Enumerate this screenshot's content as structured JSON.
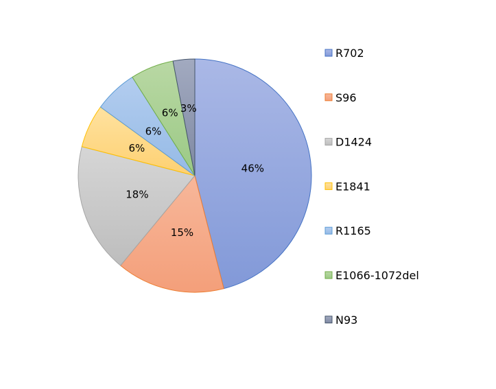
{
  "chart_data": {
    "type": "pie",
    "categories": [
      "R702",
      "S96",
      "D1424",
      "E1841",
      "R1165",
      "E1066-1072del",
      "N93"
    ],
    "values": [
      46,
      15,
      18,
      6,
      6,
      6,
      3
    ],
    "labels": [
      "46%",
      "15%",
      "18%",
      "6%",
      "6%",
      "6%",
      "3%"
    ],
    "colors": [
      "#8fa4dc",
      "#f4a784",
      "#c4c4c4",
      "#fed67a",
      "#9fc1e8",
      "#a7cf8e",
      "#8a94ad"
    ],
    "legend_position": "right"
  }
}
